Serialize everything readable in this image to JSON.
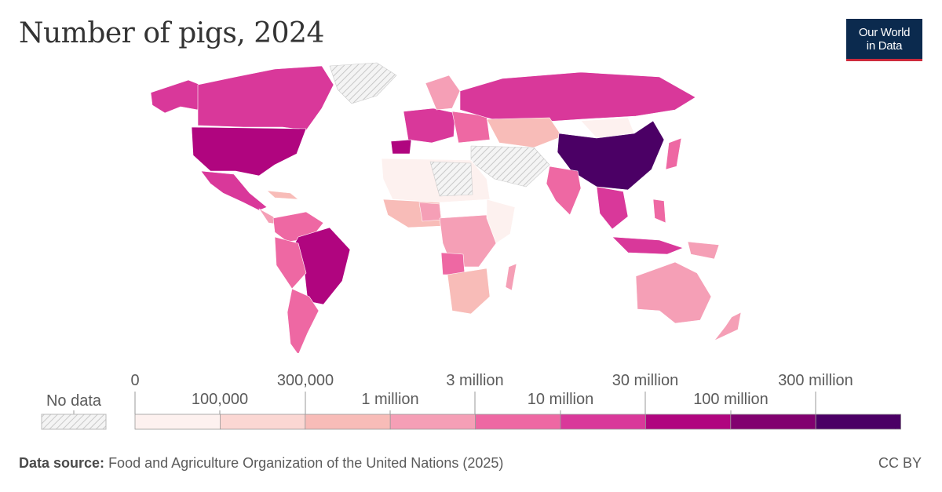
{
  "header": {
    "title": "Number of pigs, 2024"
  },
  "logo": {
    "line1": "Our World",
    "line2": "in Data"
  },
  "legend": {
    "no_data_label": "No data",
    "top_ticks": [
      "0",
      "300,000",
      "3 million",
      "30 million",
      "300 million"
    ],
    "bottom_ticks": [
      "100,000",
      "1 million",
      "10 million",
      "100 million"
    ],
    "colors": [
      "#fdf1ef",
      "#fbd7d3",
      "#f8bcb8",
      "#f59fb6",
      "#ee68a3",
      "#d9389a",
      "#b0057f",
      "#81016f",
      "#4b0065"
    ]
  },
  "footer": {
    "source_label": "Data source:",
    "source_text": "Food and Agriculture Organization of the United Nations (2025)",
    "license": "CC BY"
  }
}
